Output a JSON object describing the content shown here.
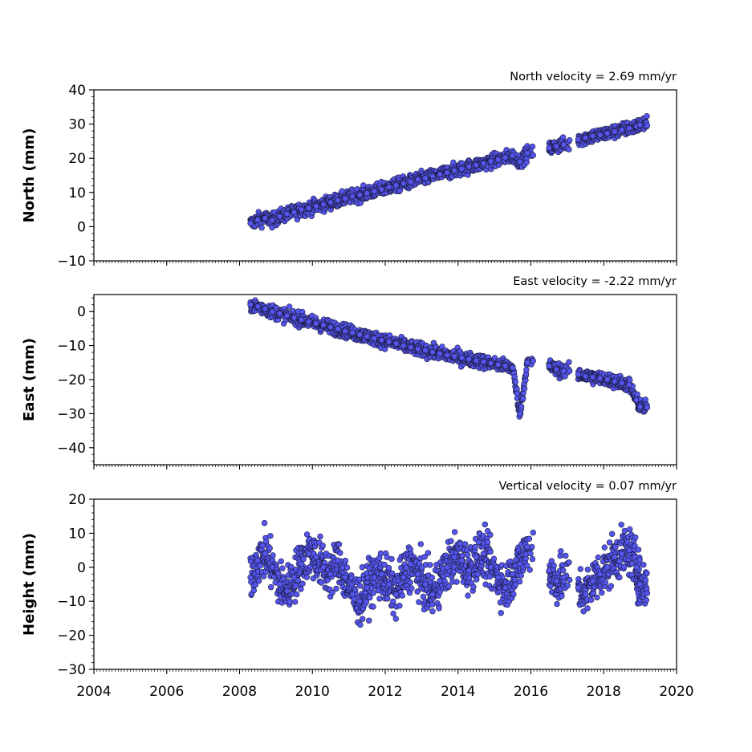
{
  "colors": {
    "marker_fill": "#5555f0",
    "marker_edge": "#1a1a3a",
    "axes": "#000000",
    "background": "#ffffff"
  },
  "chart_data": [
    {
      "type": "scatter",
      "title": "North velocity = 2.69 mm/yr",
      "xlabel": "",
      "ylabel": "North (mm)",
      "xlim": [
        2004,
        2020
      ],
      "ylim": [
        -10,
        40
      ],
      "yticks": [
        -10,
        0,
        10,
        20,
        30,
        40
      ],
      "xticks": [
        2004,
        2006,
        2008,
        2010,
        2012,
        2014,
        2016,
        2018,
        2020
      ],
      "show_xtick_labels": false,
      "grid": false,
      "series": [
        {
          "x": [
            2008.3,
            2008.5,
            2008.7,
            2008.9,
            2009.1,
            2009.3,
            2009.5,
            2009.7,
            2009.9,
            2010.1,
            2010.3,
            2010.5,
            2010.7,
            2010.9,
            2011.1,
            2011.3,
            2011.5,
            2011.7,
            2011.9,
            2012.1,
            2012.3,
            2012.5,
            2012.7,
            2012.9,
            2013.1,
            2013.3,
            2013.5,
            2013.7,
            2013.9,
            2014.1,
            2014.3,
            2014.5,
            2014.7,
            2014.9,
            2015.1,
            2015.3,
            2015.5,
            2015.7,
            2015.9,
            2016.5,
            2016.7,
            2016.9,
            2017.3,
            2017.5,
            2017.7,
            2017.9,
            2018.1,
            2018.3,
            2018.5,
            2018.7,
            2018.9,
            2019.0
          ],
          "y": [
            1.0,
            2.0,
            2.5,
            1.8,
            3.0,
            3.7,
            4.2,
            5.0,
            5.4,
            6.0,
            6.5,
            7.1,
            7.7,
            8.2,
            8.9,
            9.3,
            9.8,
            10.4,
            10.9,
            11.6,
            12.1,
            12.6,
            13.1,
            13.8,
            14.2,
            14.8,
            15.3,
            15.8,
            16.4,
            16.9,
            17.5,
            18.0,
            18.5,
            19.1,
            19.6,
            20.2,
            20.7,
            19.0,
            21.5,
            23.0,
            23.5,
            24.0,
            25.5,
            26.0,
            26.5,
            26.8,
            27.3,
            27.8,
            28.3,
            28.8,
            29.3,
            29.8
          ]
        }
      ]
    },
    {
      "type": "scatter",
      "title": "East velocity = -2.22 mm/yr",
      "xlabel": "",
      "ylabel": "East (mm)",
      "xlim": [
        2004,
        2020
      ],
      "ylim": [
        -45,
        5
      ],
      "yticks": [
        -40,
        -30,
        -20,
        -10,
        0
      ],
      "xticks": [
        2004,
        2006,
        2008,
        2010,
        2012,
        2014,
        2016,
        2018,
        2020
      ],
      "show_xtick_labels": false,
      "grid": false,
      "series": [
        {
          "x": [
            2008.3,
            2008.5,
            2008.7,
            2008.9,
            2009.1,
            2009.3,
            2009.5,
            2009.7,
            2009.9,
            2010.1,
            2010.3,
            2010.5,
            2010.7,
            2010.9,
            2011.1,
            2011.3,
            2011.5,
            2011.7,
            2011.9,
            2012.1,
            2012.3,
            2012.5,
            2012.7,
            2012.9,
            2013.1,
            2013.3,
            2013.5,
            2013.7,
            2013.9,
            2014.1,
            2014.3,
            2014.5,
            2014.7,
            2014.9,
            2015.1,
            2015.3,
            2015.5,
            2015.7,
            2015.9,
            2016.5,
            2016.7,
            2016.9,
            2017.3,
            2017.5,
            2017.7,
            2017.9,
            2018.1,
            2018.3,
            2018.5,
            2018.7,
            2018.9,
            2019.0
          ],
          "y": [
            2.0,
            1.5,
            0.8,
            0.0,
            -0.6,
            -1.2,
            -1.8,
            -2.4,
            -3.0,
            -3.5,
            -4.0,
            -4.6,
            -5.1,
            -5.7,
            -6.2,
            -6.8,
            -7.3,
            -7.9,
            -8.4,
            -8.9,
            -9.4,
            -10.0,
            -10.5,
            -11.0,
            -11.4,
            -11.9,
            -12.3,
            -12.8,
            -13.2,
            -13.6,
            -14.0,
            -14.4,
            -14.8,
            -15.2,
            -15.6,
            -16.0,
            -16.5,
            -30.0,
            -15.0,
            -16.0,
            -17.0,
            -17.5,
            -18.5,
            -19.0,
            -19.3,
            -19.6,
            -20.0,
            -20.5,
            -21.0,
            -21.5,
            -26.0,
            -28.0
          ]
        }
      ]
    },
    {
      "type": "scatter",
      "title": "Vertical velocity = 0.07 mm/yr",
      "xlabel": "",
      "ylabel": "Height (mm)",
      "xlim": [
        2004,
        2020
      ],
      "ylim": [
        -30,
        20
      ],
      "yticks": [
        -30,
        -20,
        -10,
        0,
        10,
        20
      ],
      "xticks": [
        2004,
        2006,
        2008,
        2010,
        2012,
        2014,
        2016,
        2018,
        2020
      ],
      "xtick_labels": [
        "2004",
        "2006",
        "2008",
        "2010",
        "2012",
        "2014",
        "2016",
        "2018",
        "2020"
      ],
      "show_xtick_labels": true,
      "grid": false,
      "series": [
        {
          "x": [
            2008.3,
            2008.5,
            2008.7,
            2008.9,
            2009.1,
            2009.3,
            2009.5,
            2009.7,
            2009.9,
            2010.1,
            2010.3,
            2010.5,
            2010.7,
            2010.9,
            2011.1,
            2011.3,
            2011.5,
            2011.7,
            2011.9,
            2012.1,
            2012.3,
            2012.5,
            2012.7,
            2012.9,
            2013.1,
            2013.3,
            2013.5,
            2013.7,
            2013.9,
            2014.1,
            2014.3,
            2014.5,
            2014.7,
            2014.9,
            2015.1,
            2015.3,
            2015.5,
            2015.7,
            2015.9,
            2016.5,
            2016.7,
            2016.9,
            2017.3,
            2017.5,
            2017.7,
            2017.9,
            2018.1,
            2018.3,
            2018.5,
            2018.7,
            2018.9,
            2019.0
          ],
          "y": [
            -3.0,
            2.0,
            4.0,
            0.0,
            -5.0,
            -7.0,
            -3.0,
            1.0,
            4.0,
            3.0,
            0.0,
            -2.0,
            2.0,
            -3.0,
            -8.0,
            -10.0,
            -6.0,
            -3.0,
            -2.0,
            -5.0,
            -8.0,
            -3.0,
            1.0,
            -2.0,
            -5.0,
            -8.0,
            -4.0,
            0.0,
            3.0,
            2.0,
            -1.0,
            3.0,
            4.0,
            0.0,
            -3.0,
            -6.0,
            -2.0,
            1.0,
            6.0,
            -1.0,
            -4.0,
            -3.0,
            -6.0,
            -8.0,
            -4.0,
            -2.0,
            0.0,
            3.0,
            4.0,
            5.0,
            0.0,
            -5.0
          ]
        }
      ]
    }
  ]
}
